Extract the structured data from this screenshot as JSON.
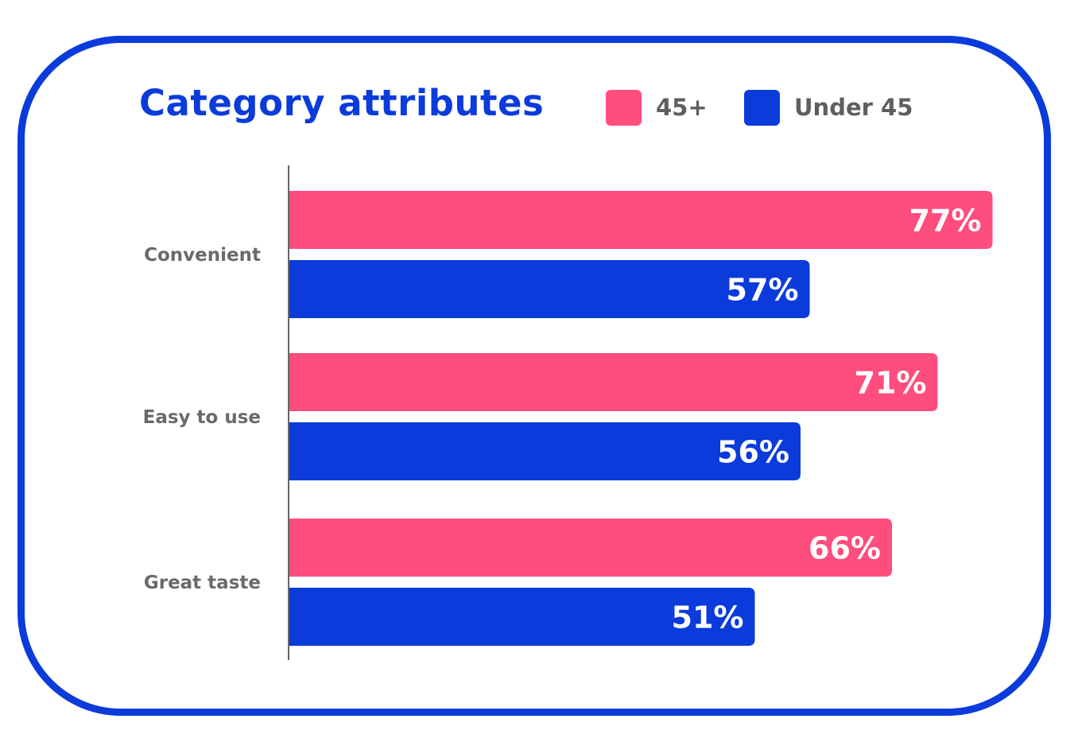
{
  "title": "Category attributes",
  "legend": [
    {
      "label": "45+",
      "color": "#FF4D7D"
    },
    {
      "label": "Under 45",
      "color": "#0B3BDB"
    }
  ],
  "colors": {
    "border": "#0B3BDB",
    "title": "#0B3BDB",
    "category_label": "#6a6a6a",
    "axis": "#666666",
    "value_label": "#ffffff"
  },
  "chart_data": {
    "type": "bar",
    "orientation": "horizontal",
    "title": "Category attributes",
    "categories": [
      "Convenient",
      "Easy to use",
      "Great taste"
    ],
    "series": [
      {
        "name": "45+",
        "color": "#FF4D7D",
        "values": [
          77,
          71,
          66
        ],
        "labels": [
          "77%",
          "71%",
          "66%"
        ]
      },
      {
        "name": "Under 45",
        "color": "#0B3BDB",
        "values": [
          57,
          56,
          51
        ],
        "labels": [
          "57%",
          "56%",
          "51%"
        ]
      }
    ],
    "xlim": [
      0,
      100
    ],
    "grid": false,
    "legend_position": "top-right",
    "xlabel": "",
    "ylabel": ""
  }
}
